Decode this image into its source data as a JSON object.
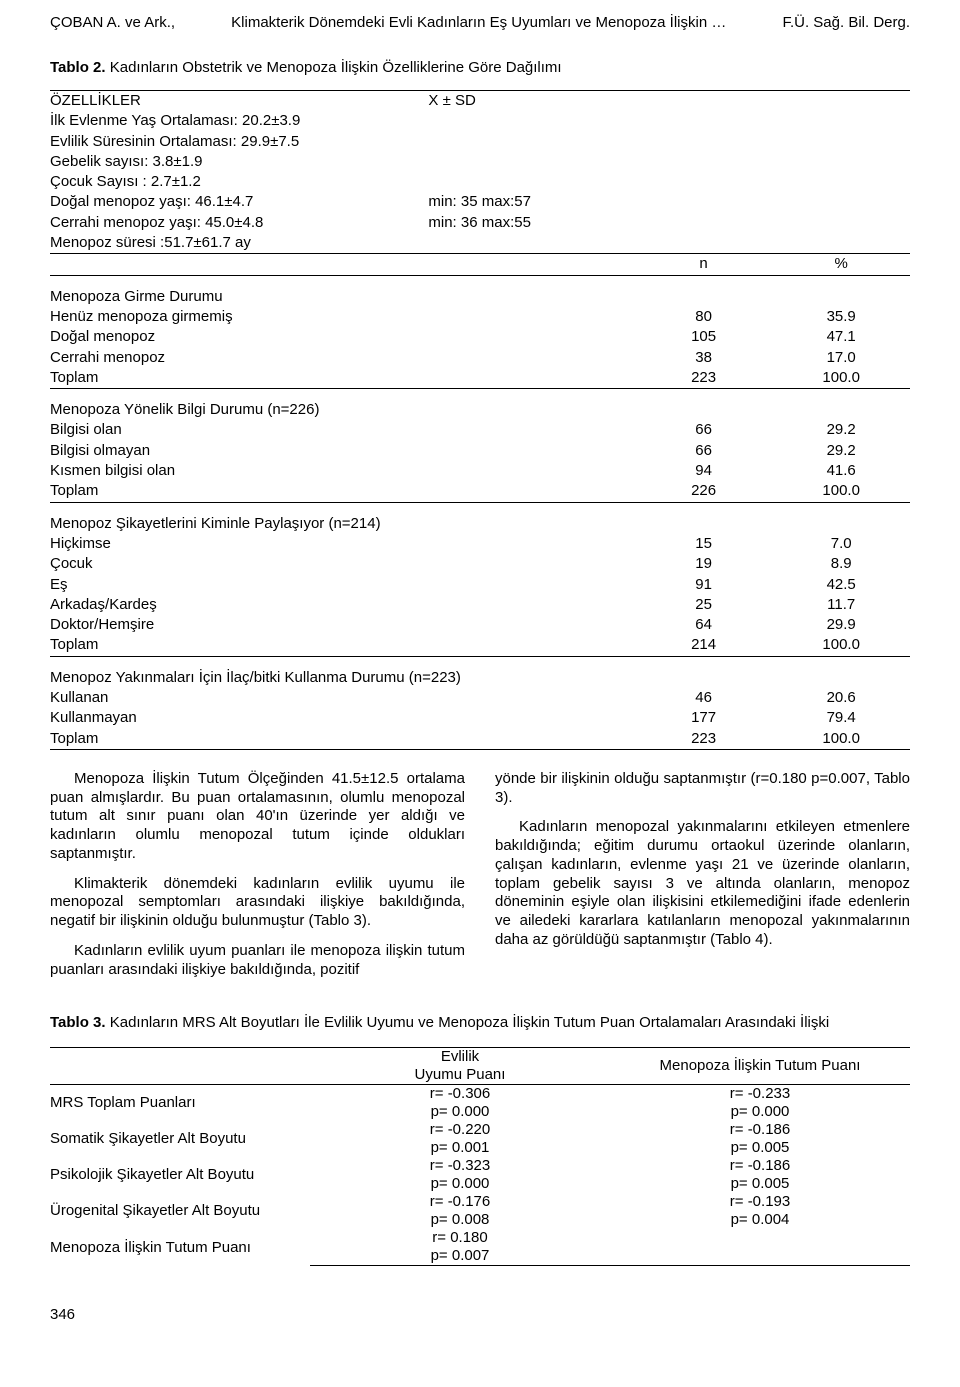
{
  "header": {
    "left": "ÇOBAN A. ve Ark.,",
    "center": "Klimakterik Dönemdeki Evli Kadınların Eş Uyumları ve Menopoza İlişkin …",
    "right": "F.Ü. Sağ. Bil. Derg."
  },
  "table2": {
    "caption_prefix": "Tablo 2.",
    "caption": "Kadınların Obstetrik ve Menopoza İlişkin Özelliklerine Göre Dağılımı",
    "header_left": "ÖZELLİKLER",
    "header_stat": "X ± SD",
    "pre_rows": [
      {
        "label": "İlk Evlenme Yaş Ortalaması: 20.2±3.9",
        "note": ""
      },
      {
        "label": "Evlilik Süresinin Ortalaması: 29.9±7.5",
        "note": ""
      },
      {
        "label": "Gebelik sayısı: 3.8±1.9",
        "note": ""
      },
      {
        "label": "Çocuk Sayısı : 2.7±1.2",
        "note": ""
      },
      {
        "label": "Doğal menopoz yaşı: 46.1±4.7",
        "note": "min: 35    max:57"
      },
      {
        "label": "Cerrahi menopoz yaşı: 45.0±4.8",
        "note": "min: 36    max:55"
      },
      {
        "label": "Menopoz süresi :51.7±61.7 ay",
        "note": ""
      }
    ],
    "col_n": "n",
    "col_pct": "%",
    "sections": [
      {
        "title": "Menopoza Girme Durumu",
        "rows": [
          {
            "label": "Henüz menopoza girmemiş",
            "n": "80",
            "pct": "35.9"
          },
          {
            "label": "Doğal menopoz",
            "n": "105",
            "pct": "47.1"
          },
          {
            "label": "Cerrahi menopoz",
            "n": "38",
            "pct": "17.0"
          },
          {
            "label": "Toplam",
            "n": "223",
            "pct": "100.0"
          }
        ]
      },
      {
        "title": "Menopoza Yönelik Bilgi Durumu (n=226)",
        "rows": [
          {
            "label": "Bilgisi olan",
            "n": "66",
            "pct": "29.2"
          },
          {
            "label": "Bilgisi olmayan",
            "n": "66",
            "pct": "29.2"
          },
          {
            "label": "Kısmen bilgisi olan",
            "n": "94",
            "pct": "41.6"
          },
          {
            "label": "Toplam",
            "n": "226",
            "pct": "100.0"
          }
        ]
      },
      {
        "title": "Menopoz Şikayetlerini Kiminle Paylaşıyor (n=214)",
        "rows": [
          {
            "label": "Hiçkimse",
            "n": "15",
            "pct": "7.0"
          },
          {
            "label": "Çocuk",
            "n": "19",
            "pct": "8.9"
          },
          {
            "label": "Eş",
            "n": "91",
            "pct": "42.5"
          },
          {
            "label": "Arkadaş/Kardeş",
            "n": "25",
            "pct": "11.7"
          },
          {
            "label": "Doktor/Hemşire",
            "n": "64",
            "pct": "29.9"
          },
          {
            "label": "Toplam",
            "n": "214",
            "pct": "100.0"
          }
        ]
      },
      {
        "title": "Menopoz Yakınmaları İçin İlaç/bitki Kullanma Durumu (n=223)",
        "rows": [
          {
            "label": "Kullanan",
            "n": "46",
            "pct": "20.6"
          },
          {
            "label": "Kullanmayan",
            "n": "177",
            "pct": "79.4"
          },
          {
            "label": "Toplam",
            "n": "223",
            "pct": "100.0"
          }
        ]
      }
    ]
  },
  "body": {
    "left": [
      "Menopoza İlişkin Tutum Ölçeğinden 41.5±12.5 ortalama puan almışlardır. Bu puan ortalamasının, olumlu menopozal tutum alt sınır puanı olan 40'ın üzerinde yer aldığı ve kadınların olumlu menopozal tutum içinde oldukları saptanmıştır.",
      "Klimakterik dönemdeki kadınların evlilik uyumu ile menopozal semptomları arasındaki ilişkiye bakıldığında, negatif bir ilişkinin olduğu bulunmuştur (Tablo 3).",
      "Kadınların evlilik uyum puanları ile menopoza ilişkin tutum puanları arasındaki ilişkiye bakıldığında, pozitif"
    ],
    "right": [
      "yönde bir ilişkinin olduğu saptanmıştır (r=0.180 p=0.007, Tablo 3).",
      "Kadınların menopozal yakınmalarını etkileyen etmenlere bakıldığında; eğitim durumu ortaokul üzerinde olanların, çalışan kadınların, evlenme yaşı 21 ve üzerinde olanların, toplam gebelik sayısı 3 ve altında olanların, menopoz döneminin eşiyle olan ilişkisini etkilemediğini ifade edenlerin ve ailedeki kararlara katılanların menopozal yakınmalarının daha az görüldüğü saptanmıştır (Tablo 4)."
    ]
  },
  "table3": {
    "caption_prefix": "Tablo 3.",
    "caption": "Kadınların MRS Alt Boyutları İle Evlilik Uyumu ve Menopoza İlişkin Tutum Puan Ortalamaları Arasındaki İlişki",
    "col2a": "Evlilik",
    "col2b": "Uyumu Puanı",
    "col3": "Menopoza İlişkin Tutum Puanı",
    "rows": [
      {
        "label": "MRS Toplam Puanları",
        "c2r": "r= -0.306",
        "c2p": "p= 0.000",
        "c3r": "r= -0.233",
        "c3p": "p= 0.000"
      },
      {
        "label": "Somatik Şikayetler Alt Boyutu",
        "c2r": "r= -0.220",
        "c2p": "p= 0.001",
        "c3r": "r= -0.186",
        "c3p": "p= 0.005"
      },
      {
        "label": "Psikolojik Şikayetler Alt Boyutu",
        "c2r": "r= -0.323",
        "c2p": "p= 0.000",
        "c3r": "r= -0.186",
        "c3p": "p= 0.005"
      },
      {
        "label": "Ürogenital Şikayetler Alt Boyutu",
        "c2r": "r= -0.176",
        "c2p": "p= 0.008",
        "c3r": "r= -0.193",
        "c3p": "p= 0.004"
      },
      {
        "label": "Menopoza İlişkin Tutum Puanı",
        "c2r": "r= 0.180",
        "c2p": "p= 0.007",
        "c3r": "",
        "c3p": ""
      }
    ]
  },
  "footer": {
    "page_number": "346"
  }
}
